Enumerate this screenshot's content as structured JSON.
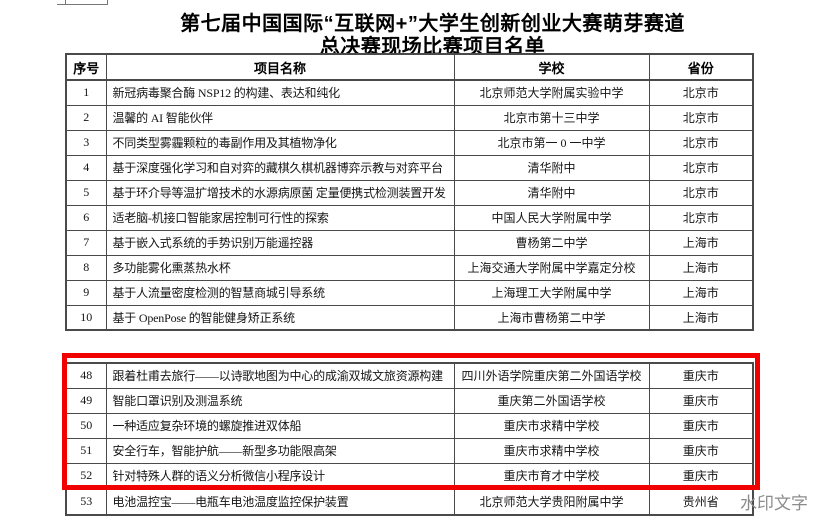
{
  "title": {
    "line1": "第七届中国国际“互联网+”大学生创新创业大赛萌芽赛道",
    "line2": "总决赛现场比赛项目名单"
  },
  "table": {
    "headers": [
      "序号",
      "项目名称",
      "学校",
      "省份"
    ],
    "rows_top": [
      [
        "1",
        "新冠病毒聚合酶 NSP12 的构建、表达和纯化",
        "北京师范大学附属实验中学",
        "北京市"
      ],
      [
        "2",
        "温馨的 AI 智能伙伴",
        "北京市第十三中学",
        "北京市"
      ],
      [
        "3",
        "不同类型雾霾颗粒的毒副作用及其植物净化",
        "北京市第一 0 一中学",
        "北京市"
      ],
      [
        "4",
        "基于深度强化学习和自对弈的藏棋久棋机器博弈示教与对弈平台",
        "清华附中",
        "北京市"
      ],
      [
        "5",
        "基于环介导等温扩增技术的水源病原菌 定量便携式检测装置开发",
        "清华附中",
        "北京市"
      ],
      [
        "6",
        "适老脑-机接口智能家居控制可行性的探索",
        "中国人民大学附属中学",
        "北京市"
      ],
      [
        "7",
        "基于嵌入式系统的手势识别万能遥控器",
        "曹杨第二中学",
        "上海市"
      ],
      [
        "8",
        "多功能雾化熏蒸热水杯",
        "上海交通大学附属中学嘉定分校",
        "上海市"
      ],
      [
        "9",
        "基于人流量密度检测的智慧商城引导系统",
        "上海理工大学附属中学",
        "上海市"
      ],
      [
        "10",
        "基于 OpenPose 的智能健身矫正系统",
        "上海市曹杨第二中学",
        "上海市"
      ]
    ],
    "rows_bottom": [
      [
        "48",
        "跟着杜甫去旅行——以诗歌地图为中心的成渝双城文旅资源构建",
        "四川外语学院重庆第二外国语学校",
        "重庆市"
      ],
      [
        "49",
        "智能口罩识别及测温系统",
        "重庆第二外国语学校",
        "重庆市"
      ],
      [
        "50",
        "一种适应复杂环境的螺旋推进双体船",
        "重庆市求精中学校",
        "重庆市"
      ],
      [
        "51",
        "安全行车，智能护航——新型多功能限高架",
        "重庆市求精中学校",
        "重庆市"
      ],
      [
        "52",
        "针对特殊人群的语义分析微信小程序设计",
        "重庆市育才中学校",
        "重庆市"
      ],
      [
        "53",
        "电池温控宝——电瓶车电池温度监控保护装置",
        "北京师范大学贵阳附属中学",
        "贵州省"
      ]
    ]
  },
  "highlight": {
    "color": "#f10000"
  },
  "watermark": {
    "text": "水印文字",
    "color": "#8c8c8c"
  }
}
